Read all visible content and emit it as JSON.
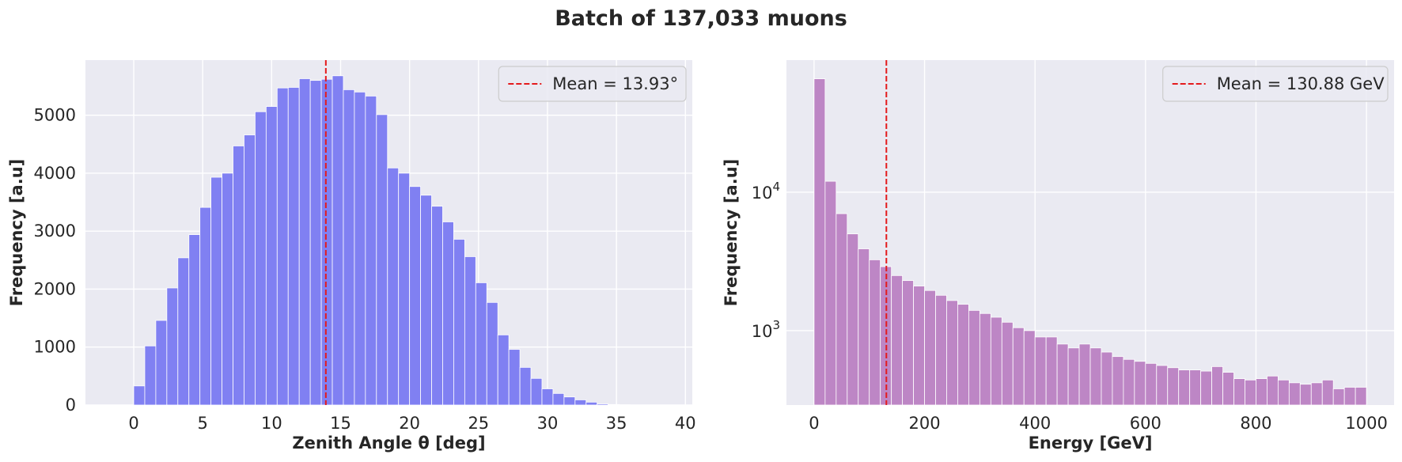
{
  "suptitle": "Batch of 137,033 muons",
  "chart_data": [
    {
      "type": "bar",
      "subtype": "histogram",
      "xlabel": "Zenith Angle θ [deg]",
      "ylabel": "Frequency [a.u]",
      "xlim": [
        -3.5,
        40.5
      ],
      "ylim": [
        0,
        5950
      ],
      "xticks": [
        0,
        5,
        10,
        15,
        20,
        25,
        30,
        35,
        40
      ],
      "yticks": [
        0,
        1000,
        2000,
        3000,
        4000,
        5000
      ],
      "bin_width": 0.8,
      "bin_start": 0,
      "values": [
        330,
        1020,
        1460,
        2020,
        2540,
        2940,
        3410,
        3930,
        4000,
        4470,
        4660,
        5060,
        5150,
        5470,
        5480,
        5630,
        5600,
        5620,
        5680,
        5440,
        5400,
        5330,
        5010,
        4090,
        4000,
        3770,
        3620,
        3430,
        3160,
        2860,
        2560,
        2110,
        1770,
        1210,
        960,
        650,
        460,
        280,
        200,
        140,
        90,
        50,
        20,
        10,
        5,
        2,
        1
      ],
      "bar_color": "#8080f2",
      "mean_line": {
        "value": 13.93,
        "label": "Mean = 13.93°",
        "color": "#e41a1c"
      },
      "legend_position": "top-right",
      "grid": true
    },
    {
      "type": "bar",
      "subtype": "histogram",
      "xlabel": "Energy [GeV]",
      "ylabel": "Frequency [a.u]",
      "log_y": true,
      "xlim": [
        -50,
        1050
      ],
      "ylim": [
        290,
        90000
      ],
      "xticks": [
        0,
        200,
        400,
        600,
        800,
        1000
      ],
      "yticks": [
        {
          "value": 1000,
          "base": "10",
          "exp": "3"
        },
        {
          "value": 10000,
          "base": "10",
          "exp": "4"
        }
      ],
      "bin_width": 20,
      "bin_start": 0,
      "values": [
        66000,
        12000,
        7000,
        5000,
        3900,
        3250,
        2900,
        2500,
        2300,
        2100,
        1950,
        1800,
        1650,
        1550,
        1400,
        1330,
        1250,
        1150,
        1050,
        1000,
        900,
        900,
        800,
        750,
        800,
        750,
        700,
        650,
        620,
        600,
        580,
        560,
        540,
        520,
        520,
        510,
        550,
        500,
        450,
        440,
        450,
        470,
        440,
        420,
        410,
        420,
        440,
        380,
        390,
        390
      ],
      "bar_color": "#bd86c5",
      "mean_line": {
        "value": 130.88,
        "label": "Mean = 130.88 GeV",
        "color": "#e41a1c"
      },
      "legend_position": "top-right",
      "grid": true
    }
  ]
}
